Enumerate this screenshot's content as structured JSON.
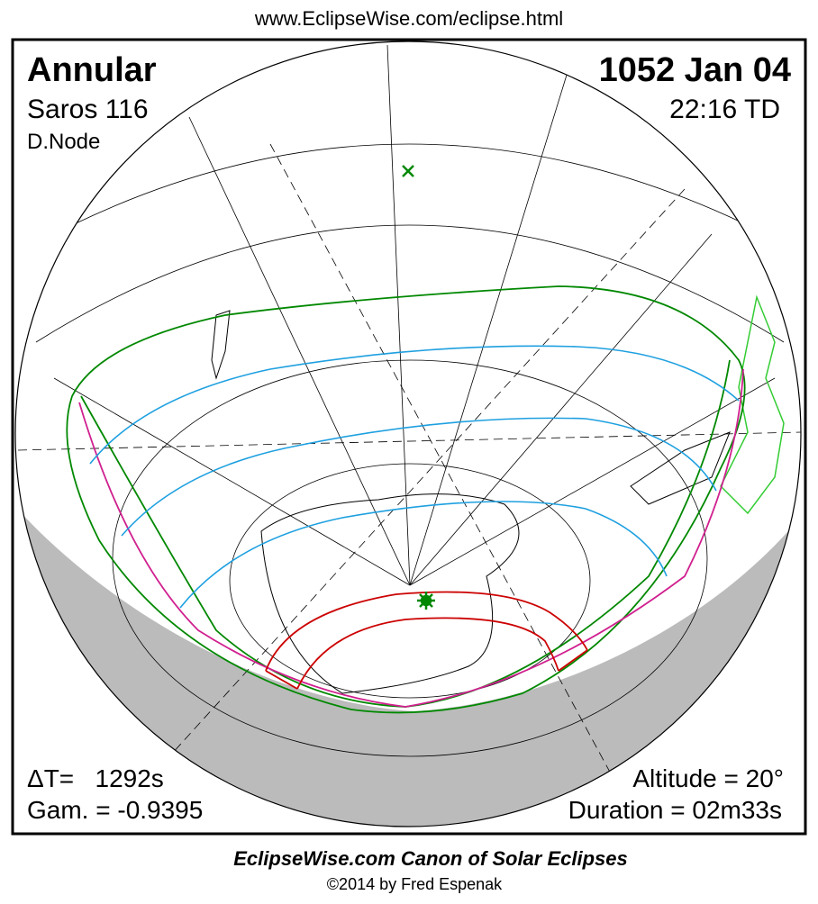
{
  "header": {
    "url": "www.EclipseWise.com/eclipse.html"
  },
  "panel": {
    "eclipse_type": "Annular",
    "saros": "Saros 116",
    "node": "D.Node",
    "date": "1052 Jan 04",
    "time": "22:16 TD",
    "delta_t": "ΔT=   1292s",
    "gamma": "Gam. = -0.9395",
    "altitude": "Altitude = 20°",
    "duration": "Duration = 02m33s"
  },
  "footer": {
    "title": "EclipseWise.com Canon of Solar Eclipses",
    "credit": "©2014 by Fred Espenak"
  }
}
